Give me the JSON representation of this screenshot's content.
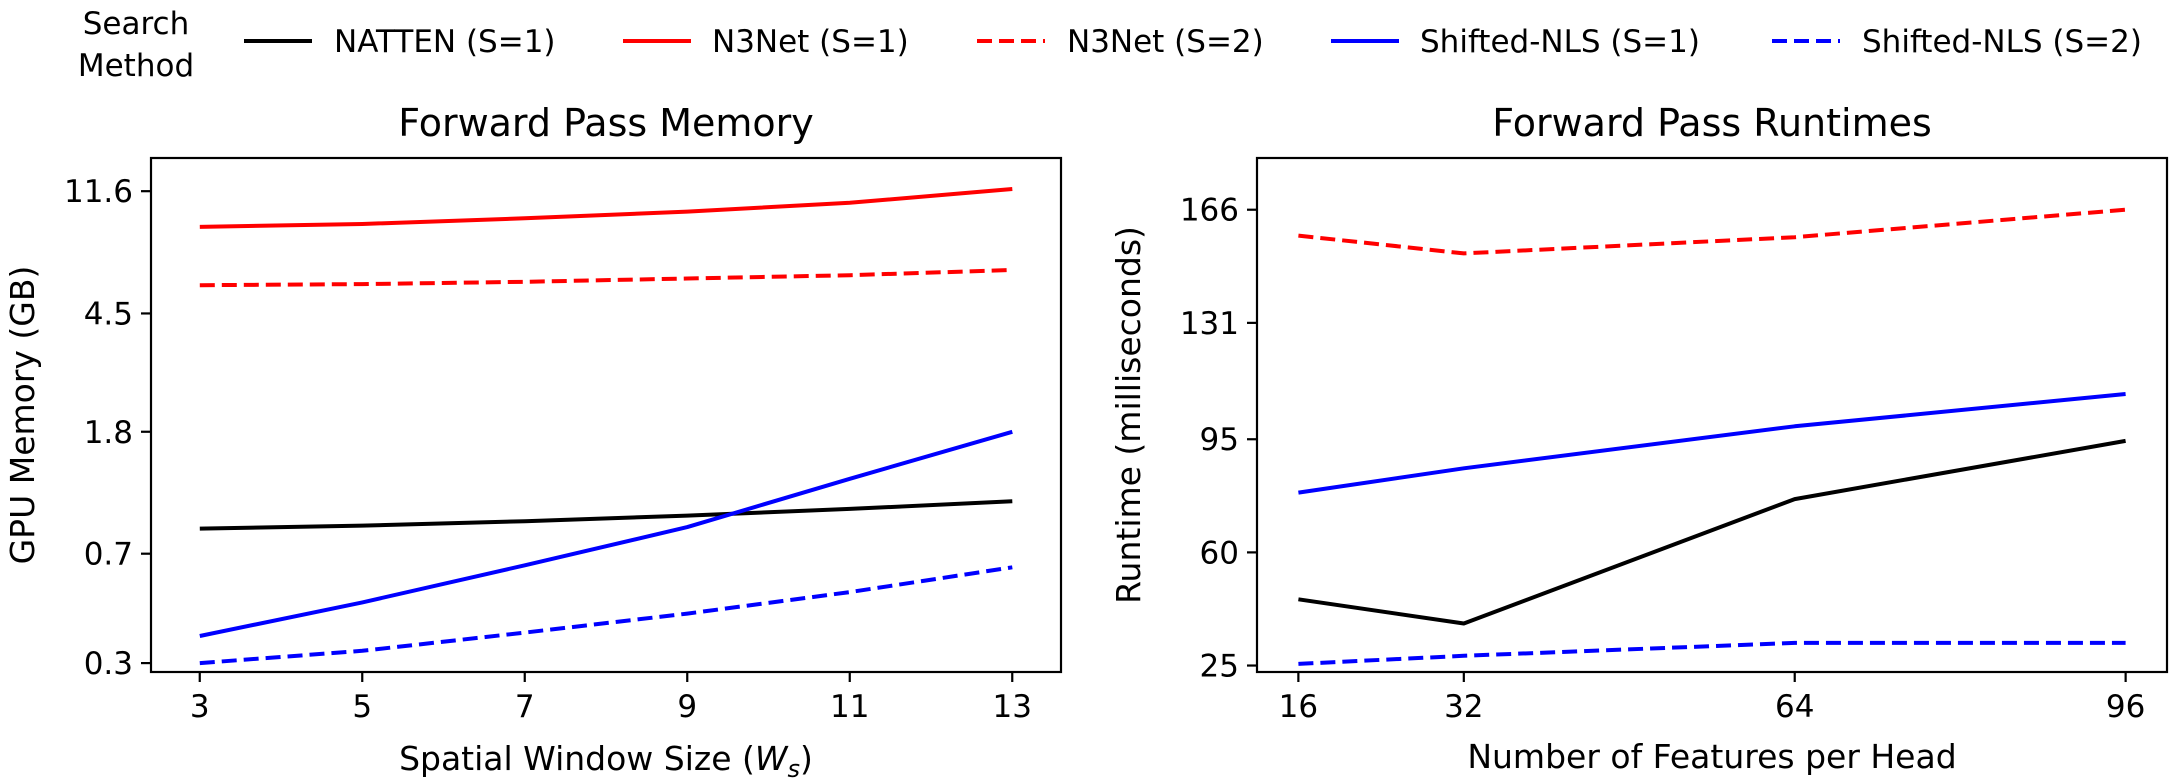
{
  "legend": {
    "title_line1": "Search",
    "title_line2": "Method",
    "entries": [
      {
        "label": "NATTEN (S=1)",
        "color": "#000000",
        "style": "solid"
      },
      {
        "label": "N3Net (S=1)",
        "color": "#ff0000",
        "style": "solid"
      },
      {
        "label": "N3Net (S=2)",
        "color": "#ff0000",
        "style": "dashed"
      },
      {
        "label": "Shifted-NLS (S=1)",
        "color": "#0000ff",
        "style": "solid"
      },
      {
        "label": "Shifted-NLS (S=2)",
        "color": "#0000ff",
        "style": "dashed"
      }
    ]
  },
  "chart_data": [
    {
      "type": "line",
      "title": "Forward Pass Memory",
      "xlabel_main": "Spatial Window Size (",
      "xlabel_symbol": "W",
      "xlabel_sub": "s",
      "xlabel_close": ")",
      "ylabel": "GPU Memory (GB)",
      "y_scale": "log",
      "x": [
        3,
        5,
        7,
        9,
        11,
        13
      ],
      "x_ticks": [
        "3",
        "5",
        "7",
        "9",
        "11",
        "13"
      ],
      "xlim": [
        2.4,
        13.6
      ],
      "y_ticks": [
        0.3,
        0.7,
        1.8,
        4.5,
        11.6
      ],
      "y_tick_labels": [
        "0.3",
        "0.7",
        "1.8",
        "4.5",
        "11.6"
      ],
      "ylim": [
        0.28,
        15.0
      ],
      "grid": false,
      "series": [
        {
          "name": "NATTEN (S=1)",
          "color": "#000000",
          "dashed": false,
          "values": [
            0.85,
            0.87,
            0.9,
            0.94,
            0.99,
            1.05
          ]
        },
        {
          "name": "N3Net (S=1)",
          "color": "#ff0000",
          "dashed": false,
          "values": [
            8.8,
            9.0,
            9.4,
            9.9,
            10.6,
            11.8
          ]
        },
        {
          "name": "N3Net (S=2)",
          "color": "#ff0000",
          "dashed": true,
          "values": [
            5.6,
            5.65,
            5.75,
            5.9,
            6.05,
            6.3
          ]
        },
        {
          "name": "Shifted-NLS (S=1)",
          "color": "#0000ff",
          "dashed": false,
          "values": [
            0.37,
            0.48,
            0.64,
            0.86,
            1.25,
            1.8
          ]
        },
        {
          "name": "Shifted-NLS (S=2)",
          "color": "#0000ff",
          "dashed": true,
          "values": [
            0.3,
            0.33,
            0.38,
            0.44,
            0.52,
            0.63
          ]
        }
      ]
    },
    {
      "type": "line",
      "title": "Forward Pass Runtimes",
      "xlabel_main": "Number of Features per Head",
      "ylabel": "Runtime (milliseconds)",
      "y_scale": "linear",
      "x": [
        16,
        32,
        64,
        96
      ],
      "x_ticks": [
        "16",
        "32",
        "64",
        "96"
      ],
      "xlim": [
        12.0,
        100.0
      ],
      "y_ticks": [
        25,
        60,
        95,
        131,
        166
      ],
      "y_tick_labels": [
        "25",
        "60",
        "95",
        "131",
        "166"
      ],
      "ylim": [
        23,
        182
      ],
      "grid": false,
      "series": [
        {
          "name": "NATTEN (S=1)",
          "color": "#000000",
          "dashed": false,
          "values": [
            45.5,
            38,
            76.5,
            94.5
          ]
        },
        {
          "name": "N3Net (S=2)",
          "color": "#ff0000",
          "dashed": true,
          "values": [
            158,
            152.5,
            157.5,
            166
          ]
        },
        {
          "name": "Shifted-NLS (S=1)",
          "color": "#0000ff",
          "dashed": false,
          "values": [
            78.5,
            86,
            99,
            109
          ]
        },
        {
          "name": "Shifted-NLS (S=2)",
          "color": "#0000ff",
          "dashed": true,
          "values": [
            25.5,
            28,
            32,
            32
          ]
        }
      ]
    }
  ]
}
